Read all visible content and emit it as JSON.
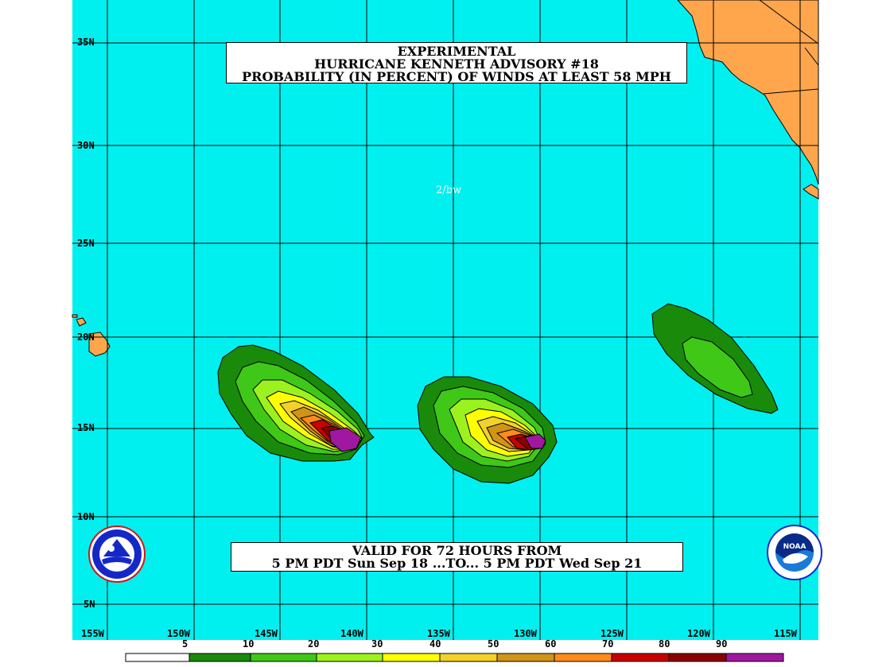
{
  "title": {
    "line1": "EXPERIMENTAL",
    "line2": "HURRICANE KENNETH ADVISORY #18",
    "line3": "PROBABILITY (IN PERCENT) OF WINDS AT LEAST 58 MPH"
  },
  "credit": "2/bw",
  "valid": {
    "line1": "VALID FOR 72 HOURS FROM",
    "line2": "5 PM PDT Sun Sep 18 ...TO... 5 PM PDT Wed Sep 21"
  },
  "lat_labels": [
    "35N",
    "30N",
    "25N",
    "20N",
    "15N",
    "10N",
    "5N"
  ],
  "lon_labels": [
    "155W",
    "150W",
    "145W",
    "140W",
    "135W",
    "130W",
    "125W",
    "120W",
    "115W"
  ],
  "scale": {
    "labels": [
      "5",
      "10",
      "20",
      "30",
      "40",
      "50",
      "60",
      "70",
      "80",
      "90"
    ],
    "colors": [
      "#ffffff",
      "#1a8a0a",
      "#3fc818",
      "#9cf21e",
      "#ffff00",
      "#f2d22a",
      "#d09418",
      "#ff8c1a",
      "#c80000",
      "#8c0000",
      "#a018a0"
    ]
  },
  "colors": {
    "ocean": "#00f0f0",
    "land": "#ffa64d",
    "grid": "#000000"
  },
  "icons": {
    "left_logo": "national-weather-service-logo",
    "right_logo": "noaa-logo"
  }
}
